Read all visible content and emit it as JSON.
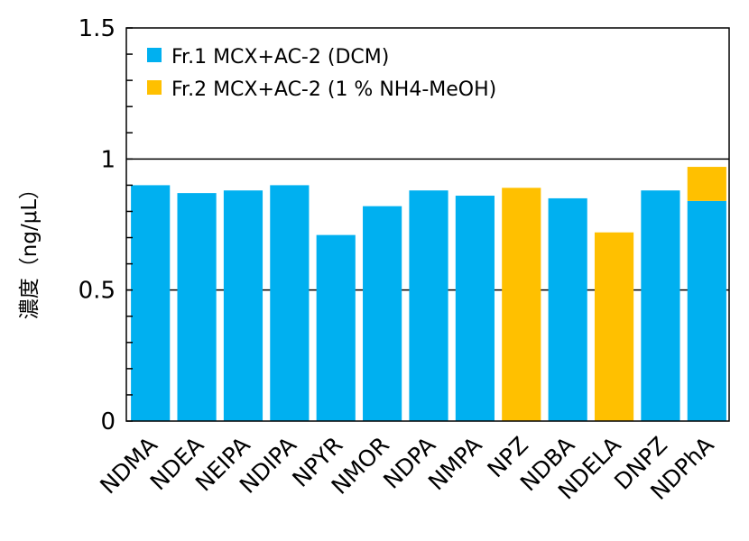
{
  "chart_data": {
    "type": "bar",
    "ylabel": "濃度（ng/μL）",
    "ylim": [
      0,
      1.5
    ],
    "yticks": [
      "0",
      "0.5",
      "1",
      "1.5"
    ],
    "grid": "horizontal at 0.5 and 1",
    "legend_position": "top-left",
    "categories": [
      "NDMA",
      "NDEA",
      "NEIPA",
      "NDIPA",
      "NPYR",
      "NMOR",
      "NDPA",
      "NMPA",
      "NPZ",
      "NDBA",
      "NDELA",
      "DNPZ",
      "NDPhA"
    ],
    "series": [
      {
        "name": "Fr.1 MCX+AC-2 (DCM)",
        "color": "#00B0F0",
        "values": [
          0.9,
          0.87,
          0.88,
          0.9,
          0.71,
          0.82,
          0.88,
          0.86,
          0,
          0.85,
          0,
          0.88,
          0.84
        ]
      },
      {
        "name": "Fr.2 MCX+AC-2 (1 % NH4-MeOH)",
        "color": "#FFC000",
        "values": [
          0,
          0,
          0,
          0,
          0,
          0,
          0,
          0,
          0.89,
          0,
          0.72,
          0,
          0.13
        ]
      }
    ],
    "stacked": true
  }
}
